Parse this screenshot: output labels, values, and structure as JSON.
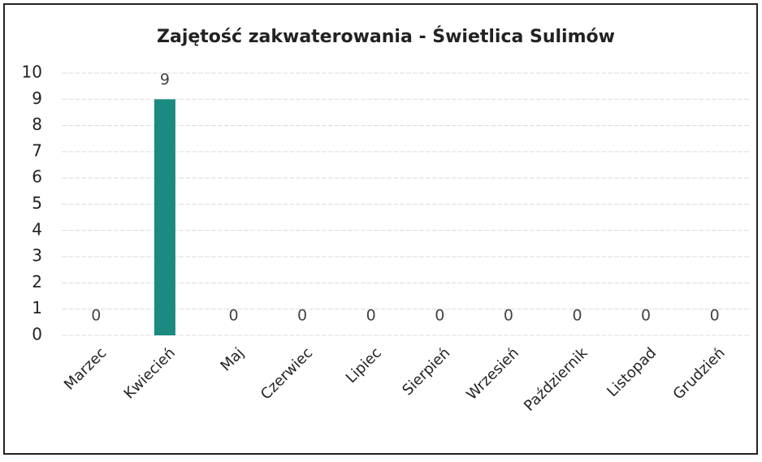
{
  "chart_data": {
    "type": "bar",
    "title": "Zajętość zakwaterowania - Świetlica Sulimów",
    "categories": [
      "Marzec",
      "Kwiecień",
      "Maj",
      "Czerwiec",
      "Lipiec",
      "Sierpień",
      "Wrzesień",
      "Październik",
      "Listopad",
      "Grudzień"
    ],
    "values": [
      0,
      9,
      0,
      0,
      0,
      0,
      0,
      0,
      0,
      0
    ],
    "color": "#1b8a80",
    "ylim": [
      0,
      10
    ],
    "yticks": [
      0,
      1,
      2,
      3,
      4,
      5,
      6,
      7,
      8,
      9,
      10
    ],
    "grid": true
  }
}
